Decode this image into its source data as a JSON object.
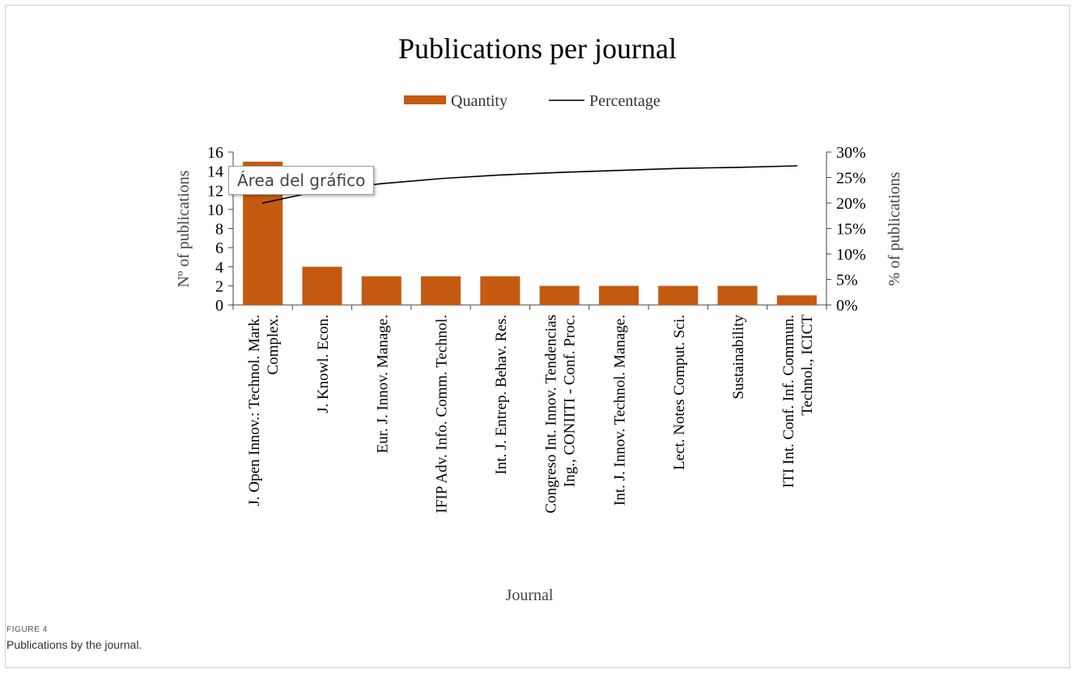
{
  "chart_data": {
    "type": "bar",
    "title": "Publications per journal",
    "xlabel": "Journal",
    "ylabel": "Nº of publications",
    "ylabel_right": "% of publications",
    "legend": {
      "placement": "top",
      "entries": [
        "Quantity",
        "Percentage"
      ]
    },
    "categories": [
      [
        "J. Open Innov.: Technol. Mark.",
        "Complex."
      ],
      [
        "J. Knowl. Econ."
      ],
      [
        "Eur. J. Innov. Manage."
      ],
      [
        "IFIP Adv. Info. Comm. Technol."
      ],
      [
        "Int. J. Entrep. Behav. Res."
      ],
      [
        "Congreso Int. Innov. Tendencias",
        "Ing., CONIITI - Conf. Proc."
      ],
      [
        "Int. J. Innov. Technol. Manage."
      ],
      [
        "Lect. Notes Comput. Sci."
      ],
      [
        "Sustainability"
      ],
      [
        "ITI Int. Conf. Inf. Commun.",
        "Technol., ICICT"
      ]
    ],
    "series": [
      {
        "name": "Quantity",
        "type": "bar",
        "axis": "left",
        "color": "#c55a11",
        "values": [
          15,
          4,
          3,
          3,
          3,
          2,
          2,
          2,
          2,
          1
        ]
      },
      {
        "name": "Percentage",
        "type": "line",
        "axis": "right",
        "color": "#000000",
        "values": [
          20,
          22.5,
          23.8,
          24.8,
          25.5,
          26,
          26.4,
          26.8,
          27,
          27.3
        ]
      }
    ],
    "ylim": [
      0,
      16
    ],
    "yticks": [
      "0",
      "2",
      "4",
      "6",
      "8",
      "10",
      "12",
      "14",
      "16"
    ],
    "y2lim": [
      0,
      30
    ],
    "y2ticks": [
      "0%",
      "5%",
      "10%",
      "15%",
      "20%",
      "25%",
      "30%"
    ],
    "grid": false
  },
  "tooltip": "Área del gráfico",
  "figure": {
    "label": "FIGURE 4",
    "caption": "Publications by the journal."
  }
}
